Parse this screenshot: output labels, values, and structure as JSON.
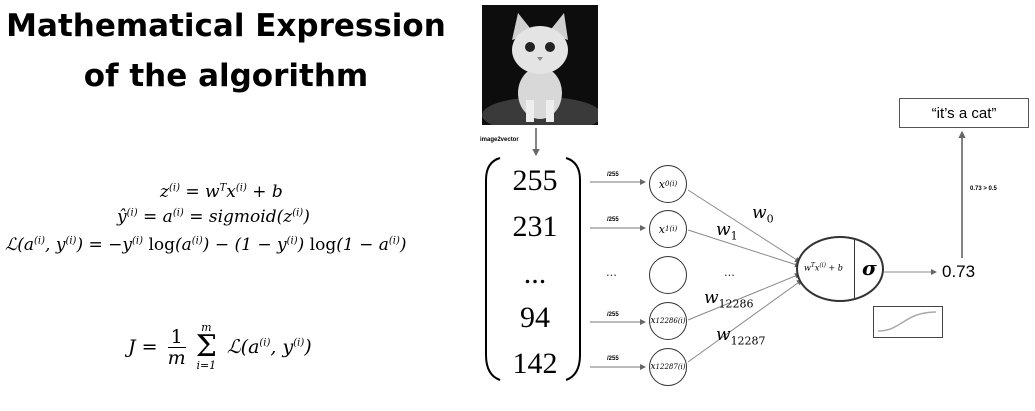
{
  "title": {
    "line1": "Mathematical Expression",
    "line2": "of the algorithm"
  },
  "equations": {
    "z": "z(i) = wTx(i) + b",
    "yhat": "ŷ(i) = a(i) = sigmoid(z(i))",
    "loss": "ℒ(a(i), y(i)) = −y(i) log(a(i)) − (1 − y(i)) log(1 − a(i))",
    "cost": "J = (1/m) Σ i=1..m ℒ(a(i), y(i))"
  },
  "image_label": "image2vector",
  "vector": [
    "255",
    "231",
    "...",
    "94",
    "142"
  ],
  "scale_label": "/255",
  "dots": "...",
  "nodes": [
    "x0(i)",
    "x1(i)",
    "",
    "x12286(i)",
    "x12287(i)"
  ],
  "weights": [
    "w0",
    "w1",
    "w12286",
    "w12287"
  ],
  "neuron": {
    "linear": "wTx(i) + b",
    "activation": "σ"
  },
  "output_value": "0.73",
  "threshold": "0.73 > 0.5",
  "prediction": "“it’s a cat”",
  "colors": {
    "line": "#333333",
    "arrow": "#666666",
    "cat_bg": "#111111"
  }
}
